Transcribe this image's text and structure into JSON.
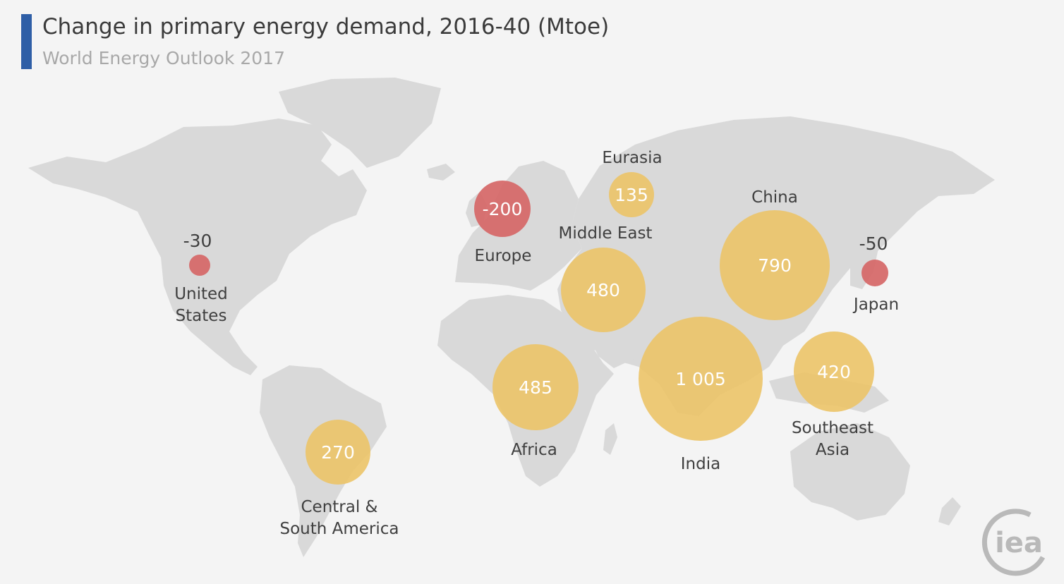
{
  "header": {
    "title": "Change in primary energy demand, 2016-40 (Mtoe)",
    "subtitle": "World Energy Outlook 2017"
  },
  "colors": {
    "positive": "#ebc46a",
    "negative": "#d66a6a",
    "land": "#d9d9d9",
    "title_accent": "#2e5ea6"
  },
  "logo": {
    "text": "iea"
  },
  "regions": [
    {
      "id": "united-states",
      "label_lines": [
        "United",
        "States"
      ],
      "value": "-30",
      "sign": "negative"
    },
    {
      "id": "europe",
      "label_lines": [
        "Europe"
      ],
      "value": "-200",
      "sign": "negative"
    },
    {
      "id": "eurasia",
      "label_lines": [
        "Eurasia"
      ],
      "value": "135",
      "sign": "positive"
    },
    {
      "id": "middle-east",
      "label_lines": [
        "Middle East"
      ],
      "value": "480",
      "sign": "positive"
    },
    {
      "id": "china",
      "label_lines": [
        "China"
      ],
      "value": "790",
      "sign": "positive"
    },
    {
      "id": "japan",
      "label_lines": [
        "Japan"
      ],
      "value": "-50",
      "sign": "negative"
    },
    {
      "id": "africa",
      "label_lines": [
        "Africa"
      ],
      "value": "485",
      "sign": "positive"
    },
    {
      "id": "india",
      "label_lines": [
        "India"
      ],
      "value": "1 005",
      "sign": "positive"
    },
    {
      "id": "southeast-asia",
      "label_lines": [
        "Southeast",
        "Asia"
      ],
      "value": "420",
      "sign": "positive"
    },
    {
      "id": "central-south-america",
      "label_lines": [
        "Central &",
        "South America"
      ],
      "value": "270",
      "sign": "positive"
    }
  ]
}
